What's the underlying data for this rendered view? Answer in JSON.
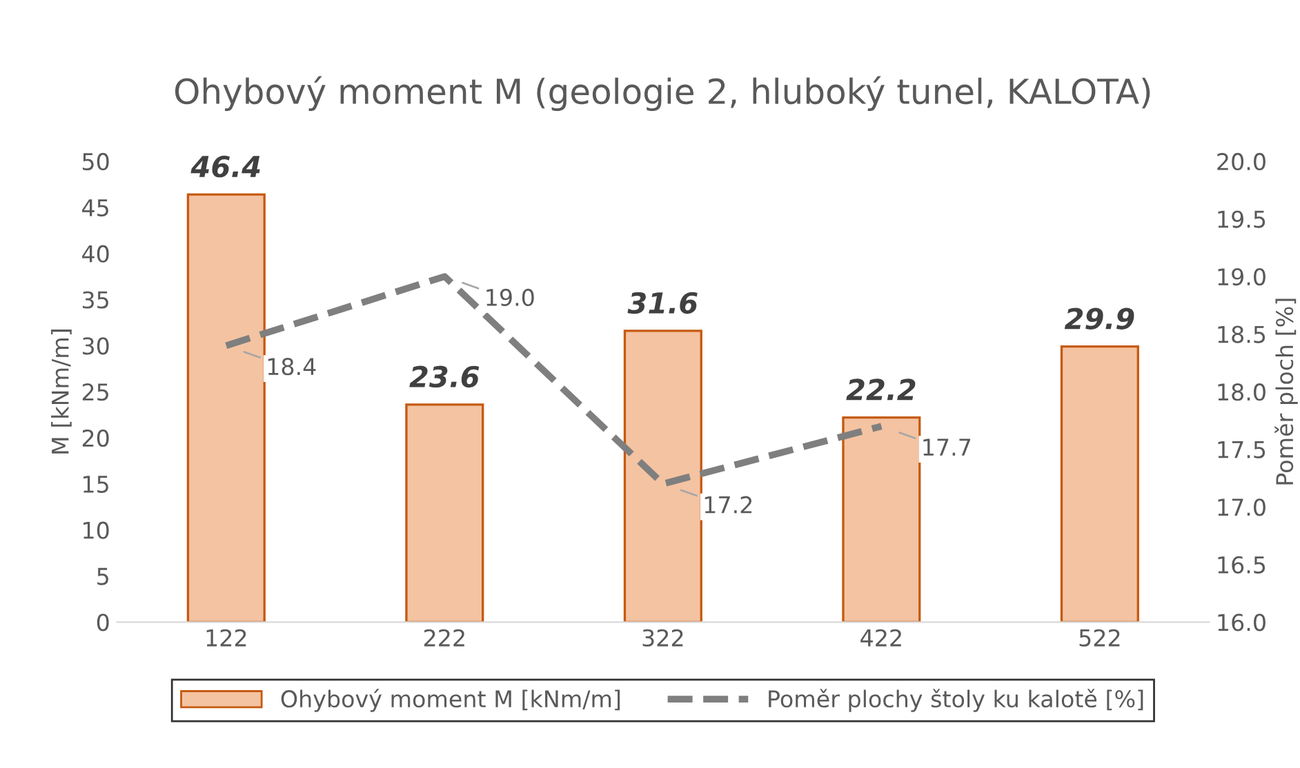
{
  "chart_data": {
    "type": "bar",
    "title": "Ohybový moment M (geologie 2, hluboký tunel, KALOTA)",
    "categories": [
      "122",
      "222",
      "322",
      "422",
      "522"
    ],
    "ylabel": "M [kNm/m]",
    "y2label": "Poměr ploch [%]",
    "series": [
      {
        "name": "Ohybový moment M [kNm/m]",
        "color": "#f4c3a2",
        "values": [
          46.4,
          23.6,
          31.6,
          22.2,
          29.9
        ]
      },
      {
        "name": "Poměr plochy štoly ku kalotě [%]",
        "type": "line",
        "axis": "y2",
        "color": "#7f7f7f",
        "line_style": "dashed",
        "marker": "none",
        "values": [
          18.4,
          19.0,
          17.2,
          17.7,
          null
        ],
        "value_labels": [
          "18.4",
          "19.0",
          "17.2",
          "17.7",
          null
        ]
      }
    ],
    "ylim": [
      0,
      50
    ],
    "yticks": [
      0,
      5,
      10,
      15,
      20,
      25,
      30,
      35,
      40,
      45,
      50
    ],
    "y2lim": [
      16,
      20
    ],
    "y2ticks": [
      {
        "value": 16,
        "label": "16.0"
      },
      16.5,
      {
        "value": 17,
        "label": "17.0"
      },
      17.5,
      {
        "value": 18,
        "label": "18.0"
      },
      18.5,
      {
        "value": 19,
        "label": "19.0"
      },
      19.5,
      {
        "value": 20,
        "label": "20.0"
      }
    ],
    "data_labels": true,
    "legend": "bottom",
    "grid": false
  }
}
